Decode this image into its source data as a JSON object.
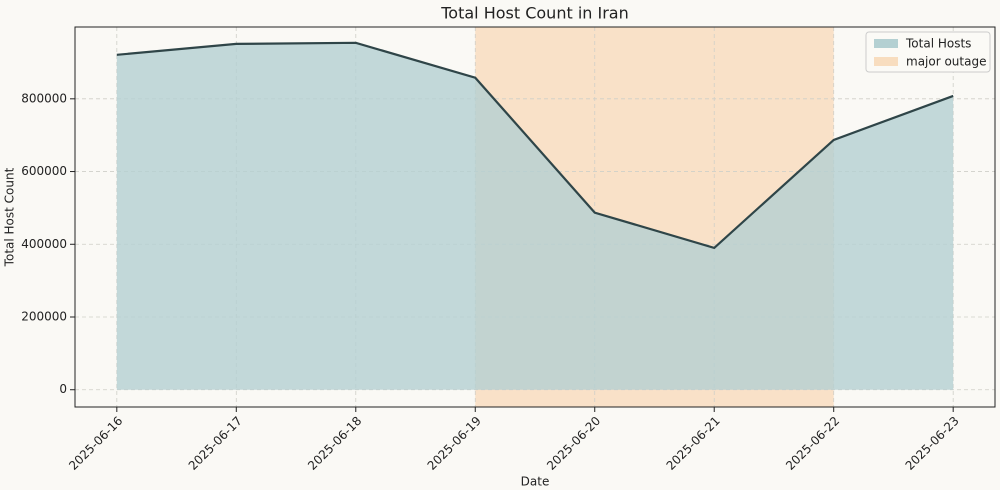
{
  "chart_data": {
    "type": "area",
    "title": "Total Host Count in Iran",
    "x_label": "Date",
    "y_label": "Total Host Count",
    "categories": [
      "2025-06-16",
      "2025-06-17",
      "2025-06-18",
      "2025-06-19",
      "2025-06-20",
      "2025-06-21",
      "2025-06-22",
      "2025-06-23"
    ],
    "series": [
      {
        "name": "Total Hosts",
        "color": "#b4d0d2",
        "line_color": "#2f4548",
        "values": [
          921000,
          951000,
          954000,
          858000,
          487000,
          390000,
          687000,
          808000
        ]
      }
    ],
    "span": {
      "name": "major outage",
      "start": "2025-06-19",
      "end": "2025-06-22",
      "color": "#f8ddbf"
    },
    "ylim": [
      -47500,
      997500
    ],
    "yticks": [
      0,
      200000,
      400000,
      600000,
      800000
    ],
    "grid": true,
    "legend": "upper right"
  }
}
